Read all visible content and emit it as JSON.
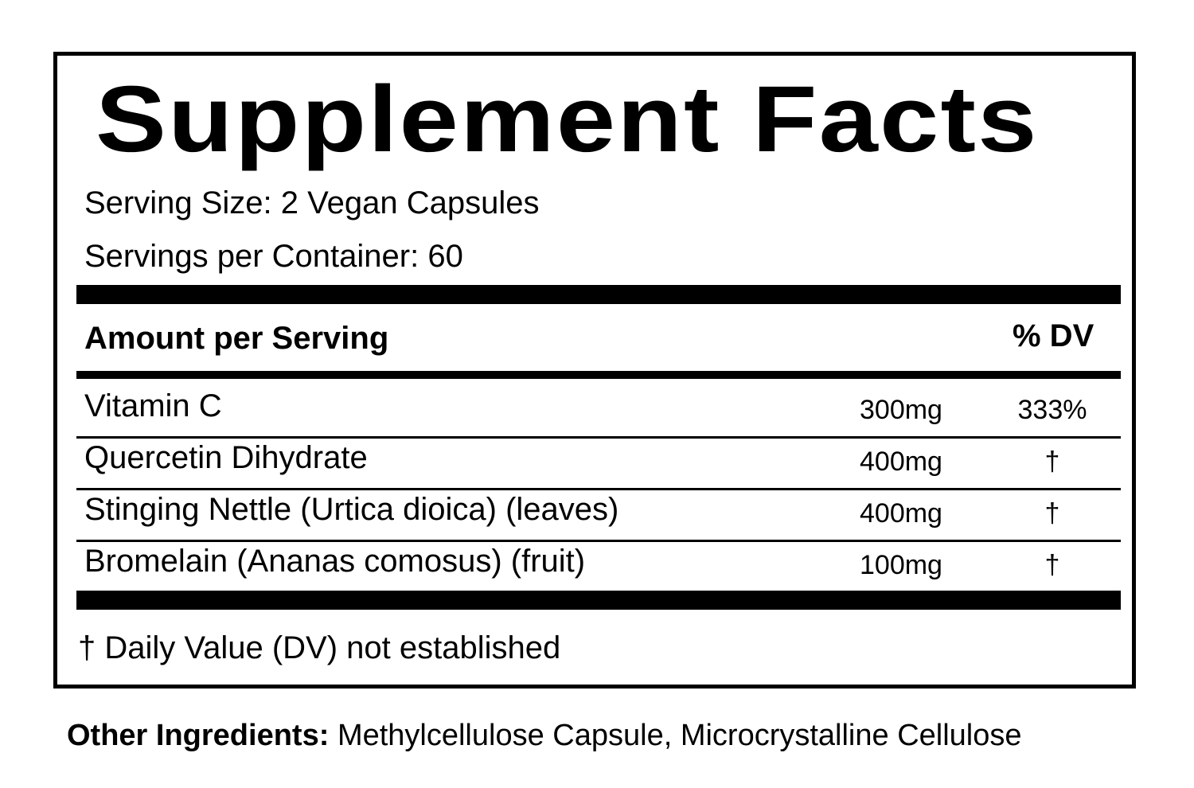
{
  "title": "Supplement Facts",
  "serving_size": "Serving Size: 2 Vegan Capsules",
  "servings_per_container": "Servings per Container: 60",
  "table": {
    "header": [
      "Amount per Serving",
      "% DV"
    ],
    "rows": [
      [
        "Vitamin C",
        "300mg",
        "333%"
      ],
      [
        "Quercetin Dihydrate",
        "400mg",
        "†"
      ],
      [
        "Stinging Nettle (Urtica dioica) (leaves)",
        "400mg",
        "†"
      ],
      [
        "Bromelain (Ananas comosus) (fruit)",
        "100mg",
        "†"
      ]
    ]
  },
  "footnote": "† Daily Value (DV) not established",
  "other_ingredients": {
    "label": "Other Ingredients:",
    "text": "Methylcellulose Capsule, Microcrystalline Cellulose"
  }
}
